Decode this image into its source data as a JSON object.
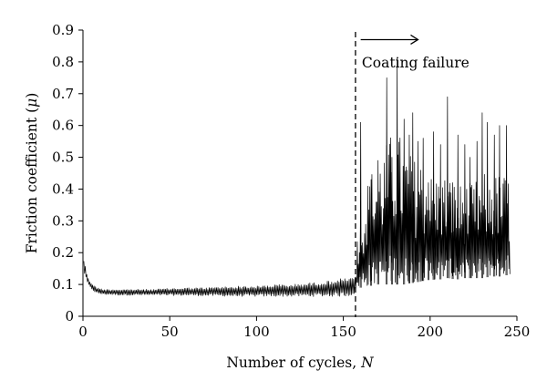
{
  "chart_data": {
    "type": "line",
    "title": "",
    "xlabel": {
      "text": "Number of cycles, ",
      "var": "N"
    },
    "ylabel": {
      "text": "Friction coefficient (",
      "var": "μ",
      "close": ")"
    },
    "xlim": [
      0,
      250
    ],
    "ylim": [
      0,
      0.9
    ],
    "xticks": [
      0,
      50,
      100,
      150,
      200,
      250
    ],
    "yticks": [
      0,
      0.1,
      0.2,
      0.3,
      0.4,
      0.5,
      0.6,
      0.7,
      0.8,
      0.9
    ],
    "xtick_labels": [
      "0",
      "50",
      "100",
      "150",
      "200",
      "250"
    ],
    "ytick_labels": [
      "0",
      "0.1",
      "0.2",
      "0.3",
      "0.4",
      "0.5",
      "0.6",
      "0.7",
      "0.8",
      "0.9"
    ],
    "grid": false,
    "legend": "none",
    "line_color": "#000000",
    "annotation": {
      "label": "Coating failure",
      "failure_cycle": 157,
      "arrow_from_x": 160,
      "arrow_to_x": 193,
      "arrow_y": 0.87
    },
    "series": [
      {
        "x": [
          0.5,
          1,
          1.5,
          2,
          2.5,
          3,
          3.5,
          4,
          5,
          6,
          7,
          8,
          10,
          12,
          15,
          20,
          30,
          40,
          50,
          60,
          70,
          80,
          90,
          100,
          110,
          120,
          130,
          140,
          150,
          155,
          156,
          157,
          158,
          160,
          165,
          170,
          175,
          180,
          185,
          190,
          195,
          200,
          205,
          210,
          215,
          220,
          225,
          230,
          235,
          240,
          245,
          246
        ],
        "lower": [
          0.14,
          0.13,
          0.12,
          0.11,
          0.105,
          0.1,
          0.095,
          0.09,
          0.085,
          0.08,
          0.075,
          0.072,
          0.07,
          0.068,
          0.068,
          0.066,
          0.066,
          0.066,
          0.065,
          0.065,
          0.064,
          0.063,
          0.062,
          0.062,
          0.062,
          0.062,
          0.062,
          0.062,
          0.062,
          0.065,
          0.07,
          0.07,
          0.09,
          0.09,
          0.095,
          0.1,
          0.1,
          0.1,
          0.1,
          0.105,
          0.11,
          0.115,
          0.115,
          0.12,
          0.115,
          0.12,
          0.12,
          0.12,
          0.125,
          0.125,
          0.13,
          0.13
        ],
        "upper": [
          0.18,
          0.17,
          0.16,
          0.14,
          0.13,
          0.12,
          0.115,
          0.11,
          0.105,
          0.1,
          0.095,
          0.09,
          0.088,
          0.085,
          0.085,
          0.085,
          0.085,
          0.085,
          0.088,
          0.09,
          0.09,
          0.093,
          0.095,
          0.095,
          0.1,
          0.1,
          0.105,
          0.11,
          0.12,
          0.12,
          0.13,
          0.13,
          0.27,
          0.35,
          0.45,
          0.5,
          0.55,
          0.6,
          0.55,
          0.5,
          0.5,
          0.45,
          0.45,
          0.45,
          0.42,
          0.42,
          0.42,
          0.45,
          0.45,
          0.45,
          0.45,
          0.28
        ],
        "peaks": [
          {
            "x": 160,
            "y": 0.61
          },
          {
            "x": 166,
            "y": 0.43
          },
          {
            "x": 170,
            "y": 0.49
          },
          {
            "x": 175,
            "y": 0.75
          },
          {
            "x": 178,
            "y": 0.5
          },
          {
            "x": 181,
            "y": 0.81
          },
          {
            "x": 185,
            "y": 0.62
          },
          {
            "x": 188,
            "y": 0.57
          },
          {
            "x": 190,
            "y": 0.64
          },
          {
            "x": 193,
            "y": 0.55
          },
          {
            "x": 196,
            "y": 0.56
          },
          {
            "x": 199,
            "y": 0.42
          },
          {
            "x": 202,
            "y": 0.58
          },
          {
            "x": 206,
            "y": 0.54
          },
          {
            "x": 210,
            "y": 0.69
          },
          {
            "x": 213,
            "y": 0.42
          },
          {
            "x": 216,
            "y": 0.57
          },
          {
            "x": 220,
            "y": 0.54
          },
          {
            "x": 223,
            "y": 0.5
          },
          {
            "x": 227,
            "y": 0.55
          },
          {
            "x": 230,
            "y": 0.64
          },
          {
            "x": 233,
            "y": 0.61
          },
          {
            "x": 237,
            "y": 0.57
          },
          {
            "x": 240,
            "y": 0.6
          },
          {
            "x": 244,
            "y": 0.6
          }
        ]
      }
    ]
  }
}
